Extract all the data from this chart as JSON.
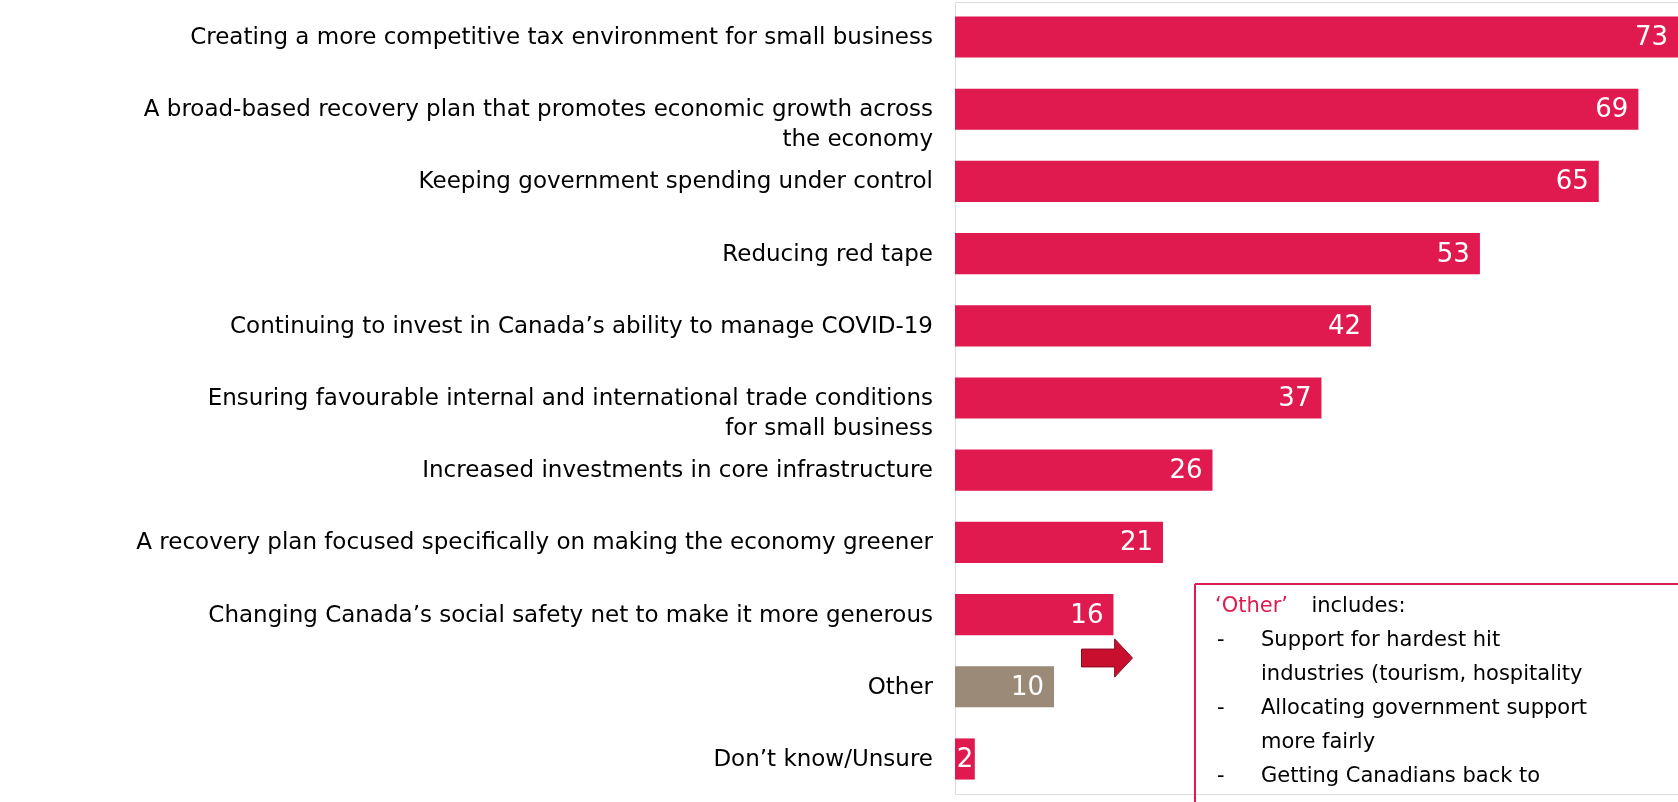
{
  "chart_data": {
    "type": "bar",
    "orientation": "horizontal",
    "data_labels": true,
    "categories": [
      "Creating a more competitive tax environment for small business",
      "A broad-based recovery plan that promotes economic growth across the economy",
      "Keeping government spending under control",
      "Reducing red tape",
      "Continuing to invest in Canada’s ability to manage COVID-19",
      "Ensuring favourable internal and international trade conditions for small business",
      "Increased investments in core infrastructure",
      "A recovery plan focused specifically on making the economy greener",
      "Changing Canada’s social safety net to make it more generous",
      "Other",
      "Don’t know/Unsure"
    ],
    "values": [
      73,
      69,
      65,
      53,
      42,
      37,
      26,
      21,
      16,
      10,
      2
    ],
    "colors": [
      "#e0194e",
      "#e0194e",
      "#e0194e",
      "#e0194e",
      "#e0194e",
      "#e0194e",
      "#e0194e",
      "#e0194e",
      "#e0194e",
      "#9b8a78",
      "#e0194e"
    ],
    "annotations": [
      "‘Other’ includes:",
      "- Support for hardest hit industries (tourism, hospitality",
      "- Allocating government support more fairly",
      "- Getting Canadians back to"
    ]
  }
}
